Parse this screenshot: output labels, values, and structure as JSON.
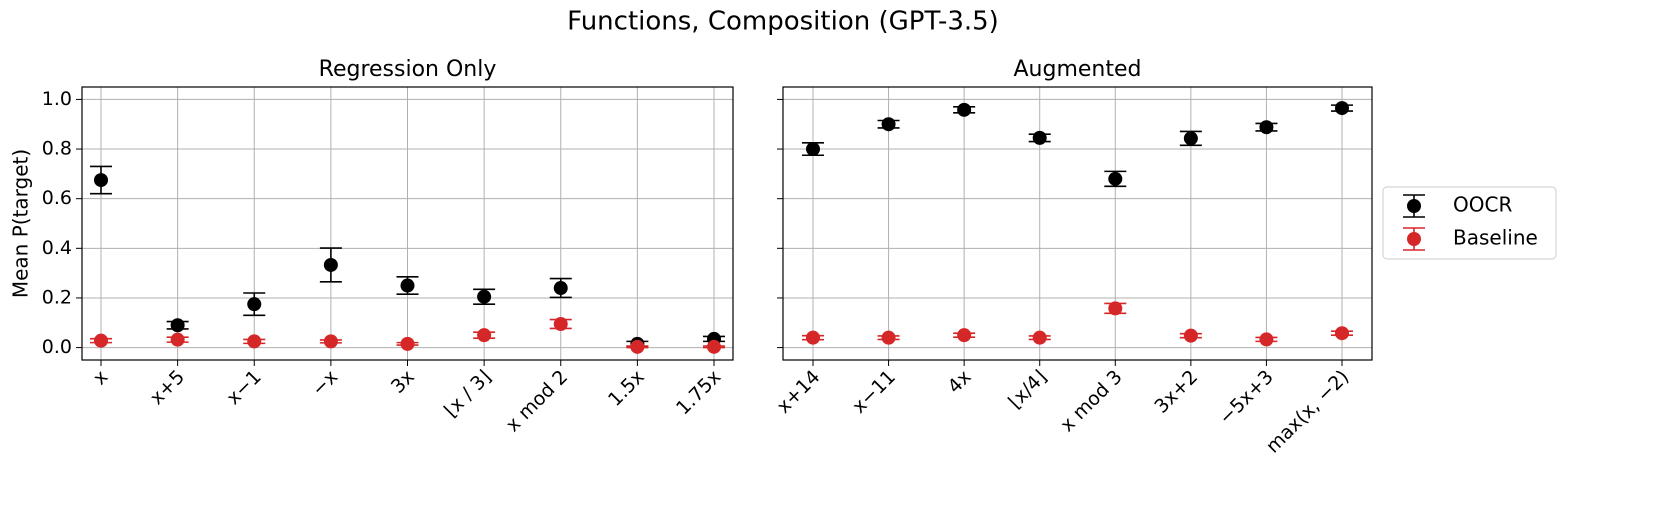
{
  "title": "Functions, Composition (GPT-3.5)",
  "chart_data": [
    {
      "type": "errorbar",
      "title": "Regression Only",
      "ylabel": "Mean P(target)",
      "categories": [
        "x",
        "x+5",
        "x−1",
        "−x",
        "3x",
        "⌊x / 3⌋",
        "x mod 2",
        "1.5x",
        "1.75x"
      ],
      "ylim": [
        -0.05,
        1.05
      ],
      "yticks": [
        {
          "value": 0,
          "label": "0.0"
        },
        0.2,
        0.4,
        0.6,
        0.8,
        {
          "value": 1,
          "label": "1.0"
        }
      ],
      "grid": true,
      "legend": "outside right",
      "series": [
        {
          "name": "OOCR",
          "color": "#000000",
          "values": [
            0.675,
            0.09,
            0.175,
            0.333,
            0.25,
            0.205,
            0.24,
            0.015,
            0.035
          ],
          "errors": [
            0.055,
            0.015,
            0.045,
            0.068,
            0.035,
            0.03,
            0.038,
            0.01,
            0.01
          ]
        },
        {
          "name": "Baseline",
          "color": "#d62728",
          "values": [
            0.028,
            0.032,
            0.025,
            0.025,
            0.015,
            0.05,
            0.095,
            0.003,
            0.003
          ],
          "errors": [
            0.008,
            0.01,
            0.008,
            0.006,
            0.005,
            0.012,
            0.018,
            0.003,
            0.003
          ]
        }
      ]
    },
    {
      "type": "errorbar",
      "title": "Augmented",
      "sharey": true,
      "grid": true,
      "categories": [
        "x+14",
        "x−11",
        "4x",
        "⌊x/4⌋",
        "x mod 3",
        "3x+2",
        "−5x+3",
        "max(x, −2)"
      ],
      "series": [
        {
          "name": "OOCR",
          "color": "#000000",
          "values": [
            0.8,
            0.9,
            0.958,
            0.845,
            0.68,
            0.843,
            0.888,
            0.965
          ],
          "errors": [
            0.025,
            0.015,
            0.012,
            0.015,
            0.03,
            0.028,
            0.015,
            0.012
          ]
        },
        {
          "name": "Baseline",
          "color": "#d62728",
          "values": [
            0.04,
            0.04,
            0.05,
            0.04,
            0.158,
            0.048,
            0.033,
            0.058
          ],
          "errors": [
            0.008,
            0.007,
            0.008,
            0.007,
            0.02,
            0.008,
            0.008,
            0.008
          ]
        }
      ]
    }
  ]
}
